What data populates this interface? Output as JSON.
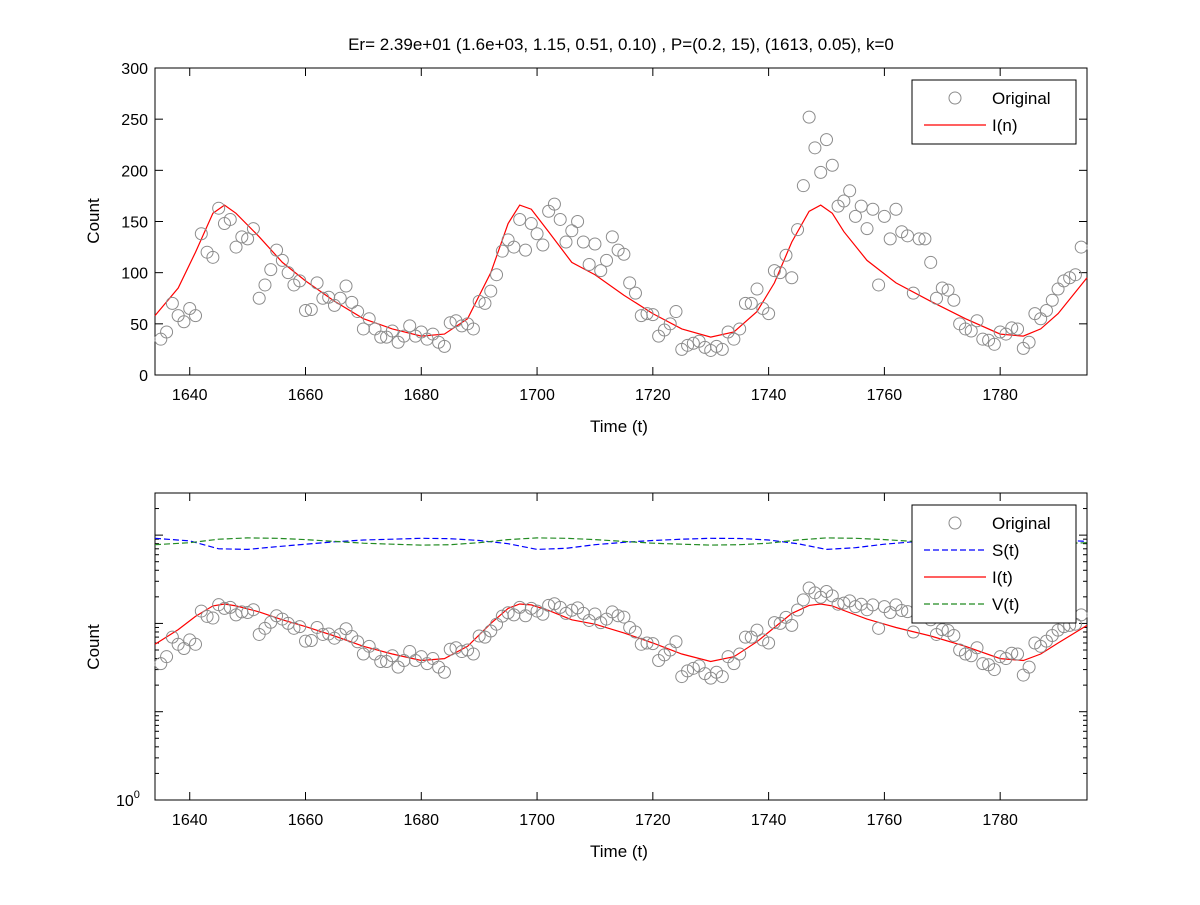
{
  "figure_title": "Er= 2.39e+01 (1.6e+03, 1.15, 0.51, 0.10) , P=(0.2, 15), (1613, 0.05), k=0",
  "chart_data": [
    {
      "type": "line",
      "title": "Er= 2.39e+01 (1.6e+03, 1.15, 0.51, 0.10) , P=(0.2, 15), (1613, 0.05), k=0",
      "xlabel": "Time (t)",
      "ylabel": "Count",
      "xlim": [
        1634,
        1795
      ],
      "ylim": [
        0,
        300
      ],
      "yscale": "linear",
      "xticks": [
        "1640",
        "1660",
        "1680",
        "1700",
        "1720",
        "1740",
        "1760",
        "1780"
      ],
      "yticks": [
        "0",
        "50",
        "100",
        "150",
        "200",
        "250",
        "300"
      ],
      "legend": [
        "Original",
        "I(n)"
      ],
      "legend_position": "top-right",
      "series": [
        {
          "name": "Original",
          "style": "markers",
          "color": "#8c8c8c",
          "x": [
            1635,
            1636,
            1637,
            1638,
            1639,
            1640,
            1641,
            1642,
            1643,
            1644,
            1645,
            1646,
            1647,
            1648,
            1649,
            1650,
            1651,
            1652,
            1653,
            1654,
            1655,
            1656,
            1657,
            1658,
            1659,
            1660,
            1661,
            1662,
            1663,
            1664,
            1665,
            1666,
            1667,
            1668,
            1669,
            1670,
            1671,
            1672,
            1673,
            1674,
            1675,
            1676,
            1677,
            1678,
            1679,
            1680,
            1681,
            1682,
            1683,
            1684,
            1685,
            1686,
            1687,
            1688,
            1689,
            1690,
            1691,
            1692,
            1693,
            1694,
            1695,
            1696,
            1697,
            1698,
            1699,
            1700,
            1701,
            1702,
            1703,
            1704,
            1705,
            1706,
            1707,
            1708,
            1709,
            1710,
            1711,
            1712,
            1713,
            1714,
            1715,
            1716,
            1717,
            1718,
            1719,
            1720,
            1721,
            1722,
            1723,
            1724,
            1725,
            1726,
            1727,
            1728,
            1729,
            1730,
            1731,
            1732,
            1733,
            1734,
            1735,
            1736,
            1737,
            1738,
            1739,
            1740,
            1741,
            1742,
            1743,
            1744,
            1745,
            1746,
            1747,
            1748,
            1749,
            1750,
            1751,
            1752,
            1753,
            1754,
            1755,
            1756,
            1757,
            1758,
            1759,
            1760,
            1761,
            1762,
            1763,
            1764,
            1765,
            1766,
            1767,
            1768,
            1769,
            1770,
            1771,
            1772,
            1773,
            1774,
            1775,
            1776,
            1777,
            1778,
            1779,
            1780,
            1781,
            1782,
            1783,
            1784,
            1785,
            1786,
            1787,
            1788,
            1789,
            1790,
            1791,
            1792,
            1793,
            1794
          ],
          "y": [
            35,
            42,
            70,
            58,
            52,
            65,
            58,
            138,
            120,
            115,
            163,
            148,
            152,
            125,
            135,
            133,
            143,
            75,
            88,
            103,
            122,
            112,
            100,
            88,
            92,
            63,
            64,
            90,
            75,
            76,
            68,
            75,
            87,
            71,
            62,
            45,
            55,
            45,
            37,
            37,
            43,
            32,
            38,
            48,
            38,
            42,
            35,
            40,
            32,
            28,
            51,
            53,
            48,
            50,
            45,
            72,
            70,
            82,
            98,
            121,
            132,
            125,
            152,
            122,
            148,
            138,
            127,
            160,
            167,
            152,
            130,
            141,
            150,
            130,
            108,
            128,
            102,
            112,
            135,
            122,
            118,
            90,
            80,
            58,
            60,
            59,
            38,
            44,
            50,
            62,
            25,
            29,
            31,
            33,
            27,
            24,
            28,
            25,
            42,
            35,
            45,
            70,
            70,
            84,
            65,
            60,
            102,
            100,
            117,
            95,
            142,
            185,
            252,
            222,
            198,
            230,
            205,
            165,
            170,
            180,
            155,
            165,
            143,
            162,
            88,
            155,
            133,
            162,
            140,
            136,
            80,
            133,
            133,
            110,
            75,
            85,
            83,
            73,
            50,
            45,
            43,
            53,
            35,
            34,
            30,
            42,
            40,
            46,
            45,
            26,
            32,
            60,
            55,
            63,
            73,
            84,
            92,
            95,
            98,
            125
          ]
        },
        {
          "name": "I(n)",
          "style": "solid",
          "color": "#ff0000",
          "x": [
            1634,
            1638,
            1641,
            1644,
            1646,
            1648,
            1652,
            1656,
            1660,
            1665,
            1670,
            1675,
            1680,
            1684,
            1688,
            1692,
            1695,
            1697,
            1699,
            1702,
            1706,
            1710,
            1715,
            1720,
            1725,
            1730,
            1734,
            1738,
            1741,
            1744,
            1747,
            1749,
            1751,
            1753,
            1757,
            1762,
            1768,
            1774,
            1780,
            1784,
            1787,
            1790,
            1795
          ],
          "y": [
            58,
            85,
            120,
            158,
            166,
            158,
            135,
            110,
            92,
            72,
            55,
            45,
            38,
            40,
            55,
            100,
            148,
            166,
            162,
            140,
            110,
            98,
            78,
            60,
            45,
            37,
            42,
            62,
            90,
            130,
            160,
            166,
            158,
            140,
            112,
            90,
            72,
            55,
            40,
            38,
            45,
            60,
            95
          ]
        }
      ]
    },
    {
      "type": "line",
      "xlabel": "Time (t)",
      "ylabel": "Count",
      "xlim": [
        1634,
        1795
      ],
      "yscale": "log",
      "xticks": [
        "1640",
        "1660",
        "1680",
        "1700",
        "1720",
        "1740",
        "1760",
        "1780"
      ],
      "ytick_label_base": "10",
      "ytick_label_exp": "0",
      "legend": [
        "Original",
        "S(t)",
        "I(t)",
        "V(t)"
      ],
      "legend_position": "top-right",
      "log_y_range": [
        1,
        3000
      ],
      "series": [
        {
          "name": "Original",
          "style": "markers",
          "color": "#8c8c8c",
          "source": "same Original values as the top panel"
        },
        {
          "name": "S(t)",
          "style": "dashed",
          "color": "#0000ff",
          "x": [
            1634,
            1640,
            1645,
            1650,
            1655,
            1660,
            1665,
            1670,
            1675,
            1680,
            1685,
            1690,
            1695,
            1700,
            1705,
            1710,
            1715,
            1720,
            1725,
            1730,
            1735,
            1740,
            1745,
            1750,
            1755,
            1760,
            1765,
            1770,
            1775,
            1780,
            1785,
            1790,
            1795
          ],
          "y": [
            920,
            860,
            700,
            690,
            740,
            790,
            840,
            880,
            900,
            920,
            910,
            870,
            800,
            690,
            710,
            780,
            830,
            870,
            900,
            920,
            915,
            880,
            800,
            690,
            720,
            790,
            840,
            880,
            900,
            920,
            915,
            880,
            850
          ]
        },
        {
          "name": "I(t)",
          "style": "solid",
          "color": "#ff0000",
          "source": "same I(n) values as the top panel"
        },
        {
          "name": "V(t)",
          "style": "dashed",
          "color": "#228b22",
          "x": [
            1634,
            1640,
            1645,
            1650,
            1655,
            1660,
            1665,
            1670,
            1675,
            1680,
            1685,
            1690,
            1695,
            1700,
            1705,
            1710,
            1715,
            1720,
            1725,
            1730,
            1735,
            1740,
            1745,
            1750,
            1755,
            1760,
            1765,
            1770,
            1775,
            1780,
            1785,
            1790,
            1795
          ],
          "y": [
            780,
            820,
            900,
            930,
            920,
            890,
            850,
            810,
            790,
            770,
            780,
            820,
            890,
            930,
            920,
            890,
            850,
            810,
            790,
            770,
            780,
            810,
            880,
            930,
            920,
            890,
            850,
            810,
            790,
            770,
            780,
            800,
            820
          ]
        }
      ]
    }
  ]
}
